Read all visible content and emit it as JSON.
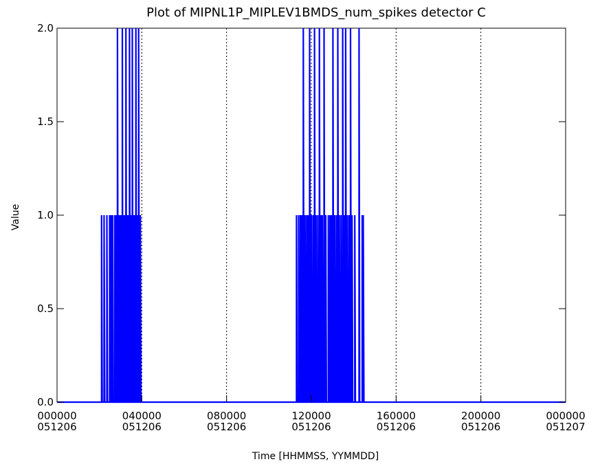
{
  "chart_data": {
    "type": "line",
    "style": "step",
    "title": "Plot of MIPNL1P_MIPLEV1BMDS_num_spikes detector C",
    "xlabel": "Time [HHMMSS, YYMMDD]",
    "ylabel": "Value",
    "ylim": [
      0.0,
      2.0
    ],
    "yticks": [
      "0.0",
      "0.5",
      "1.0",
      "1.5",
      "2.0"
    ],
    "xlim_hours": [
      0,
      24
    ],
    "xticks": [
      {
        "hour": 0,
        "time": "000000",
        "date": "051206"
      },
      {
        "hour": 4,
        "time": "040000",
        "date": "051206"
      },
      {
        "hour": 8,
        "time": "080000",
        "date": "051206"
      },
      {
        "hour": 12,
        "time": "120000",
        "date": "051206"
      },
      {
        "hour": 16,
        "time": "160000",
        "date": "051206"
      },
      {
        "hour": 20,
        "time": "200000",
        "date": "051206"
      },
      {
        "hour": 24,
        "time": "000000",
        "date": "051207"
      }
    ],
    "grid": "vertical-dotted",
    "series": [
      {
        "color": "#0000ff",
        "points": [
          [
            0.0,
            0
          ],
          [
            2.1,
            0
          ],
          [
            2.1,
            1
          ],
          [
            2.13,
            0
          ],
          [
            2.22,
            0
          ],
          [
            2.22,
            1
          ],
          [
            2.25,
            0
          ],
          [
            2.35,
            0
          ],
          [
            2.35,
            1
          ],
          [
            2.38,
            0
          ],
          [
            2.48,
            0
          ],
          [
            2.48,
            1
          ],
          [
            2.52,
            0
          ],
          [
            2.55,
            0
          ],
          [
            2.55,
            1
          ],
          [
            2.58,
            0
          ],
          [
            2.62,
            0
          ],
          [
            2.62,
            1
          ],
          [
            2.65,
            0
          ],
          [
            2.72,
            0
          ],
          [
            2.72,
            1
          ],
          [
            2.75,
            0
          ],
          [
            2.78,
            0
          ],
          [
            2.78,
            1
          ],
          [
            2.8,
            0
          ],
          [
            2.85,
            0
          ],
          [
            2.85,
            2
          ],
          [
            2.88,
            0
          ],
          [
            2.92,
            0
          ],
          [
            2.92,
            1
          ],
          [
            2.94,
            0
          ],
          [
            2.98,
            0
          ],
          [
            2.98,
            1
          ],
          [
            3.0,
            0
          ],
          [
            3.02,
            0
          ],
          [
            3.02,
            1
          ],
          [
            3.04,
            0
          ],
          [
            3.08,
            0
          ],
          [
            3.08,
            2
          ],
          [
            3.1,
            0
          ],
          [
            3.15,
            0
          ],
          [
            3.15,
            1
          ],
          [
            3.17,
            0
          ],
          [
            3.2,
            0
          ],
          [
            3.2,
            1
          ],
          [
            3.22,
            0
          ],
          [
            3.25,
            0
          ],
          [
            3.25,
            2
          ],
          [
            3.28,
            0
          ],
          [
            3.32,
            0
          ],
          [
            3.32,
            1
          ],
          [
            3.34,
            0
          ],
          [
            3.37,
            0
          ],
          [
            3.37,
            1
          ],
          [
            3.39,
            0
          ],
          [
            3.42,
            0
          ],
          [
            3.42,
            2
          ],
          [
            3.45,
            0
          ],
          [
            3.48,
            0
          ],
          [
            3.48,
            1
          ],
          [
            3.5,
            0
          ],
          [
            3.55,
            0
          ],
          [
            3.55,
            2
          ],
          [
            3.58,
            0
          ],
          [
            3.62,
            0
          ],
          [
            3.62,
            1
          ],
          [
            3.64,
            0
          ],
          [
            3.67,
            0
          ],
          [
            3.67,
            1
          ],
          [
            3.69,
            0
          ],
          [
            3.72,
            0
          ],
          [
            3.72,
            2
          ],
          [
            3.75,
            0
          ],
          [
            3.79,
            0
          ],
          [
            3.79,
            1
          ],
          [
            3.81,
            0
          ],
          [
            3.85,
            0
          ],
          [
            3.85,
            2
          ],
          [
            3.88,
            0
          ],
          [
            3.93,
            0
          ],
          [
            3.93,
            1
          ],
          [
            3.96,
            0
          ],
          [
            4.0,
            0
          ],
          [
            11.3,
            0
          ],
          [
            11.3,
            1
          ],
          [
            11.33,
            0
          ],
          [
            11.4,
            0
          ],
          [
            11.4,
            1
          ],
          [
            11.43,
            0
          ],
          [
            11.48,
            0
          ],
          [
            11.48,
            1
          ],
          [
            11.51,
            0
          ],
          [
            11.55,
            0
          ],
          [
            11.55,
            1
          ],
          [
            11.58,
            0
          ],
          [
            11.62,
            0
          ],
          [
            11.62,
            2
          ],
          [
            11.65,
            0
          ],
          [
            11.7,
            0
          ],
          [
            11.7,
            1
          ],
          [
            11.73,
            0
          ],
          [
            11.78,
            0
          ],
          [
            11.78,
            1
          ],
          [
            11.8,
            0
          ],
          [
            11.85,
            0
          ],
          [
            11.85,
            1
          ],
          [
            11.88,
            0
          ],
          [
            11.92,
            0
          ],
          [
            11.92,
            2
          ],
          [
            11.95,
            0
          ],
          [
            12.0,
            0
          ],
          [
            12.0,
            1
          ],
          [
            12.03,
            0
          ],
          [
            12.08,
            0
          ],
          [
            12.08,
            1
          ],
          [
            12.11,
            0
          ],
          [
            12.15,
            0
          ],
          [
            12.15,
            2
          ],
          [
            12.18,
            0
          ],
          [
            12.22,
            0
          ],
          [
            12.22,
            1
          ],
          [
            12.25,
            0
          ],
          [
            12.3,
            0
          ],
          [
            12.3,
            1
          ],
          [
            12.33,
            0
          ],
          [
            12.38,
            0
          ],
          [
            12.38,
            2
          ],
          [
            12.41,
            0
          ],
          [
            12.45,
            0
          ],
          [
            12.45,
            1
          ],
          [
            12.48,
            0
          ],
          [
            12.52,
            0
          ],
          [
            12.52,
            1
          ],
          [
            12.55,
            0
          ],
          [
            12.6,
            0
          ],
          [
            12.6,
            2
          ],
          [
            12.63,
            0
          ],
          [
            12.68,
            0
          ],
          [
            12.68,
            1
          ],
          [
            12.71,
            0
          ],
          [
            12.8,
            0
          ],
          [
            12.8,
            1
          ],
          [
            12.83,
            0
          ],
          [
            12.88,
            0
          ],
          [
            12.88,
            1
          ],
          [
            12.91,
            0
          ],
          [
            12.95,
            0
          ],
          [
            12.95,
            1
          ],
          [
            12.98,
            0
          ],
          [
            13.02,
            0
          ],
          [
            13.02,
            2
          ],
          [
            13.05,
            0
          ],
          [
            13.1,
            0
          ],
          [
            13.1,
            1
          ],
          [
            13.13,
            0
          ],
          [
            13.18,
            0
          ],
          [
            13.18,
            1
          ],
          [
            13.21,
            0
          ],
          [
            13.25,
            0
          ],
          [
            13.25,
            2
          ],
          [
            13.28,
            0
          ],
          [
            13.32,
            0
          ],
          [
            13.32,
            1
          ],
          [
            13.35,
            0
          ],
          [
            13.4,
            0
          ],
          [
            13.4,
            1
          ],
          [
            13.43,
            0
          ],
          [
            13.48,
            0
          ],
          [
            13.48,
            2
          ],
          [
            13.51,
            0
          ],
          [
            13.55,
            0
          ],
          [
            13.55,
            1
          ],
          [
            13.58,
            0
          ],
          [
            13.62,
            0
          ],
          [
            13.62,
            2
          ],
          [
            13.65,
            0
          ],
          [
            13.7,
            0
          ],
          [
            13.7,
            1
          ],
          [
            13.73,
            0
          ],
          [
            13.78,
            0
          ],
          [
            13.78,
            1
          ],
          [
            13.81,
            0
          ],
          [
            13.85,
            0
          ],
          [
            13.85,
            2
          ],
          [
            13.88,
            0
          ],
          [
            13.92,
            0
          ],
          [
            13.92,
            1
          ],
          [
            13.95,
            0
          ],
          [
            14.05,
            0
          ],
          [
            14.05,
            1
          ],
          [
            14.08,
            0
          ],
          [
            14.25,
            0
          ],
          [
            14.25,
            2
          ],
          [
            14.28,
            0
          ],
          [
            14.4,
            0
          ],
          [
            14.4,
            1
          ],
          [
            14.43,
            0
          ],
          [
            14.45,
            0
          ],
          [
            14.45,
            1
          ],
          [
            14.48,
            0
          ],
          [
            24.0,
            0
          ]
        ]
      }
    ]
  }
}
